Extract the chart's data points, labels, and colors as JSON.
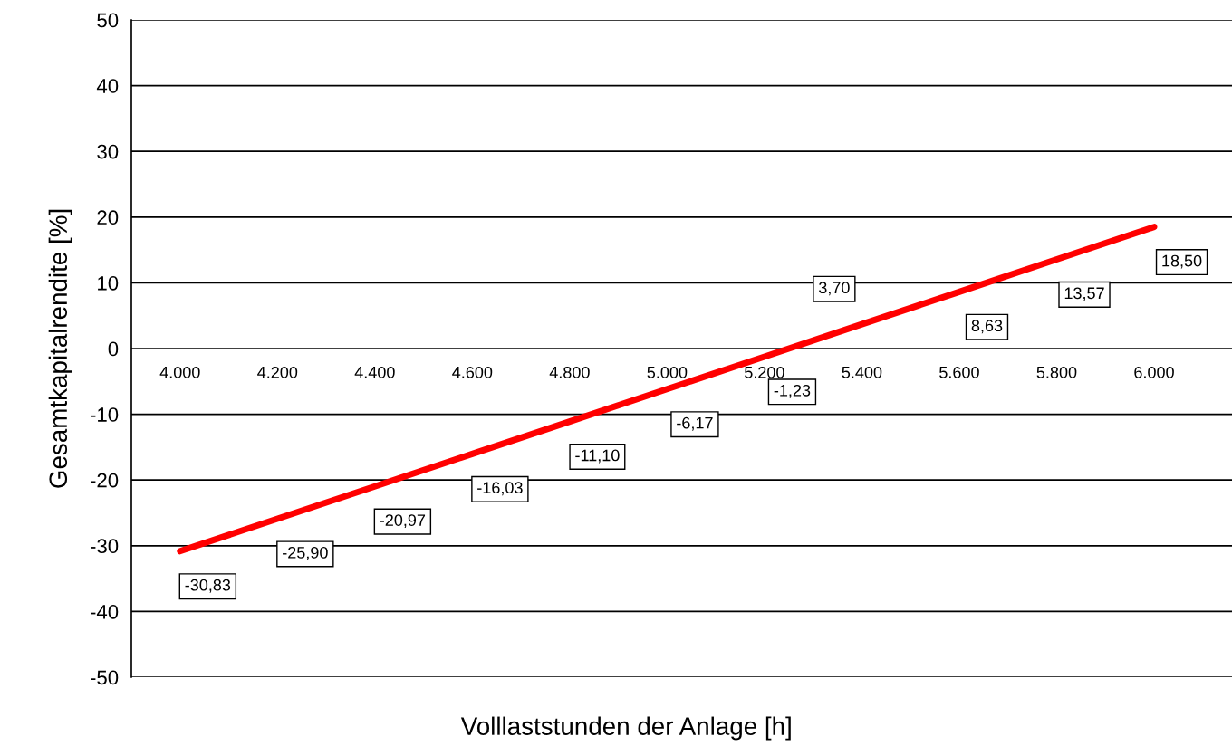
{
  "chart_data": {
    "type": "line",
    "xlabel": "Volllaststunden der Anlage [h]",
    "ylabel": "Gesamtkapitalrendite [%]",
    "categories": [
      "4.000",
      "4.200",
      "4.400",
      "4.600",
      "4.800",
      "5.000",
      "5.200",
      "5.400",
      "5.600",
      "5.800",
      "6.000"
    ],
    "series": [
      {
        "color": "#ff0000",
        "values": [
          -30.83,
          -25.9,
          -20.97,
          -16.03,
          -11.1,
          -6.17,
          -1.23,
          3.7,
          8.63,
          13.57,
          18.5
        ],
        "value_labels": [
          "-30,83",
          "-25,90",
          "-20,97",
          "-16,03",
          "-11,10",
          "-6,17",
          "-1,23",
          "3,70",
          "8,63",
          "13,57",
          "18,50"
        ]
      }
    ],
    "ylim": [
      -50,
      50
    ],
    "yticks": [
      -50,
      -40,
      -30,
      -20,
      -10,
      0,
      10,
      20,
      30,
      40,
      50
    ],
    "grid": "y",
    "marker": "none",
    "line_style": "solid",
    "legend": false
  }
}
